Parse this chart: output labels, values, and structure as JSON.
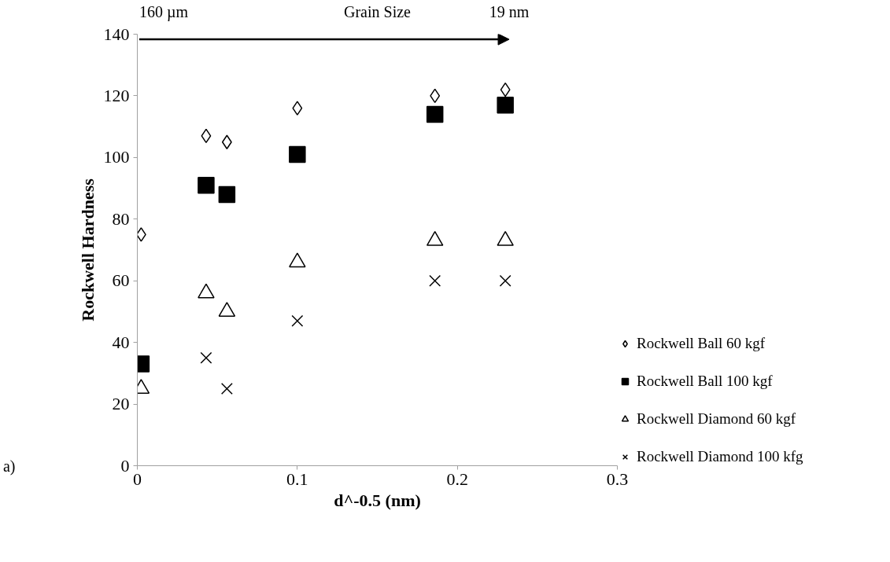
{
  "chart_data": {
    "type": "scatter",
    "xlabel": "d^-0.5 (nm)",
    "ylabel": "Rockwell Hardness",
    "annotations": [
      "160 µm",
      "Grain Size",
      "19 nm",
      "a)"
    ],
    "x": [
      0.0024,
      0.043,
      0.056,
      0.1,
      0.186,
      0.23
    ],
    "xlim": [
      0,
      0.3
    ],
    "xticks": [
      0,
      0.1,
      0.2,
      0.3
    ],
    "ylim": [
      0,
      140
    ],
    "yticks": [
      0,
      20,
      40,
      60,
      80,
      100,
      120,
      140
    ],
    "grid": false,
    "legend": "right",
    "series": [
      {
        "name": "Rockwell Ball 60 kgf",
        "color": "#000000",
        "marker": "diamond",
        "values": [
          75,
          107,
          105,
          116,
          120,
          122
        ]
      },
      {
        "name": "Rockwell Ball 100 kgf",
        "color": "#000000",
        "marker": "square",
        "values": [
          33,
          91,
          88,
          101,
          114,
          117
        ]
      },
      {
        "name": "Rockwell Diamond 60 kgf",
        "color": "#000000",
        "marker": "triangle",
        "values": [
          25,
          56,
          50,
          66,
          73,
          73
        ]
      },
      {
        "name": "Rockwell Diamond 100 kfg",
        "color": "#000000",
        "marker": "cross",
        "values": [
          null,
          35,
          25,
          47,
          60,
          60
        ]
      }
    ]
  }
}
